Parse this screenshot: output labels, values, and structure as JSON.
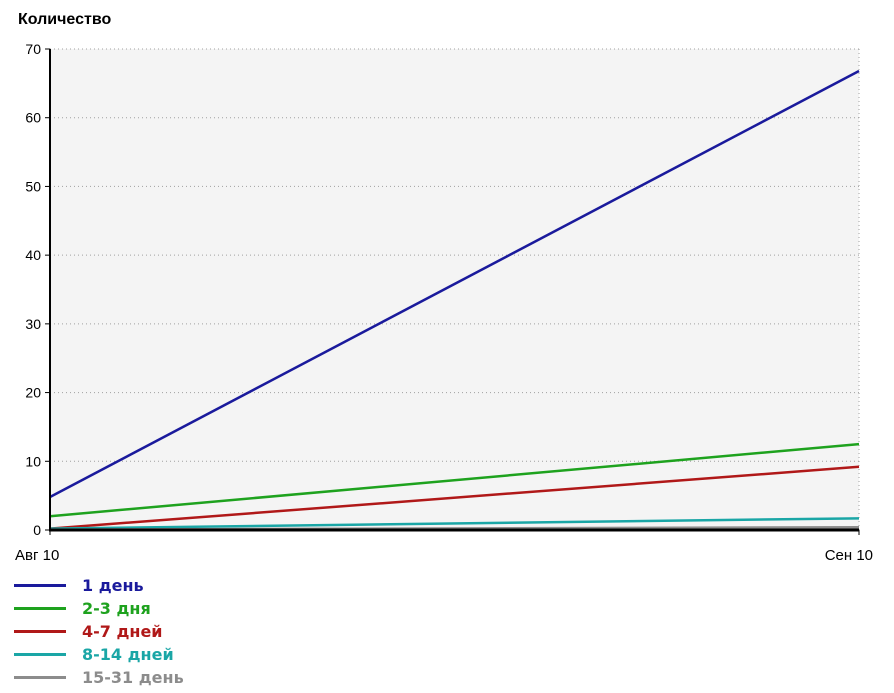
{
  "chart_data": {
    "type": "line",
    "title": "",
    "ylabel": "Количество",
    "xlabel": "",
    "x": [
      "Авг 10",
      "Сен 10"
    ],
    "ylim": [
      0,
      70
    ],
    "yticks": [
      0,
      10,
      20,
      30,
      40,
      50,
      60,
      70
    ],
    "grid": true,
    "legend": "bottom-left",
    "series": [
      {
        "name": "1 день",
        "color": "#1a1a9c",
        "values": [
          4.8,
          66.8
        ]
      },
      {
        "name": "2-3 дня",
        "color": "#1ea21e",
        "values": [
          2.0,
          12.5
        ]
      },
      {
        "name": "4-7 дней",
        "color": "#b01818",
        "values": [
          0.2,
          9.2
        ]
      },
      {
        "name": "8-14 дней",
        "color": "#1aa6a6",
        "values": [
          0.2,
          1.7
        ]
      },
      {
        "name": "15-31 день",
        "color": "#8c8c8c",
        "values": [
          0.05,
          0.4
        ]
      }
    ]
  }
}
